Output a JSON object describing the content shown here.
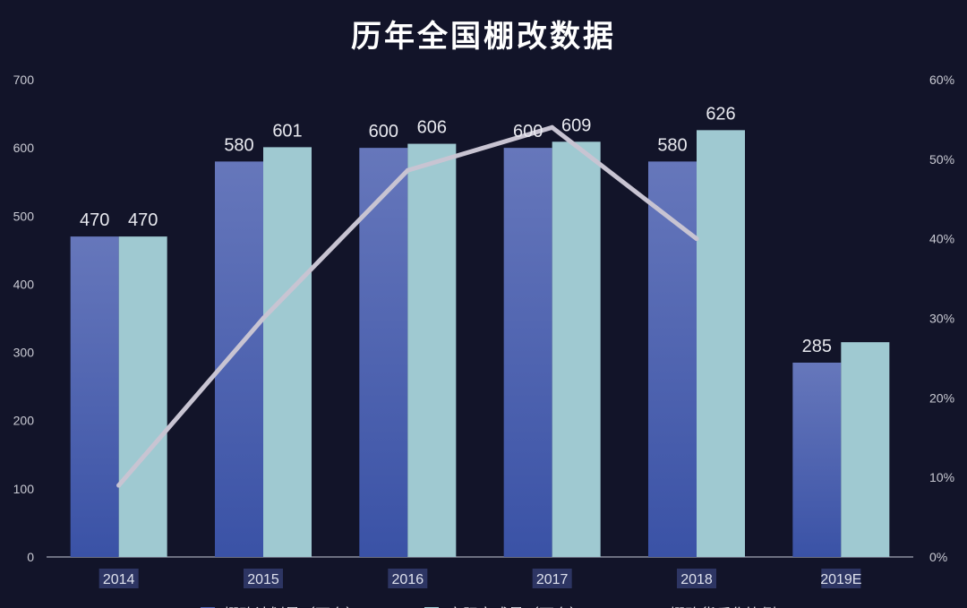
{
  "chart_data": {
    "type": "bar",
    "title": "历年全国棚改数据",
    "categories": [
      "2014",
      "2015",
      "2016",
      "2017",
      "2018",
      "2019E"
    ],
    "ylim": [
      0,
      700
    ],
    "yticks": [
      0,
      100,
      200,
      300,
      400,
      500,
      600,
      700
    ],
    "y2lim": [
      0,
      0.6
    ],
    "y2ticks": [
      "0%",
      "10%",
      "20%",
      "30%",
      "40%",
      "50%",
      "60%"
    ],
    "series": [
      {
        "name": "棚改计划量（万套）",
        "type": "bar",
        "values": [
          470,
          580,
          600,
          600,
          580,
          285
        ],
        "labels": [
          "470",
          "580",
          "600",
          "600",
          "580",
          "285"
        ],
        "color_top": "#6677bb",
        "color_bottom": "#3a52a6"
      },
      {
        "name": "实际完成量（万套）",
        "type": "bar",
        "values": [
          470,
          601,
          606,
          609,
          626,
          315
        ],
        "labels": [
          "470",
          "601",
          "606",
          "609",
          "626",
          ""
        ],
        "color": "#9fc9d1"
      },
      {
        "name": "棚改货币化比例",
        "type": "line",
        "axis": "right",
        "values": [
          0.09,
          0.3,
          0.486,
          0.54,
          0.4,
          null
        ],
        "color": "#c8c4d2"
      }
    ],
    "grid": false,
    "legend_position": "bottom"
  }
}
